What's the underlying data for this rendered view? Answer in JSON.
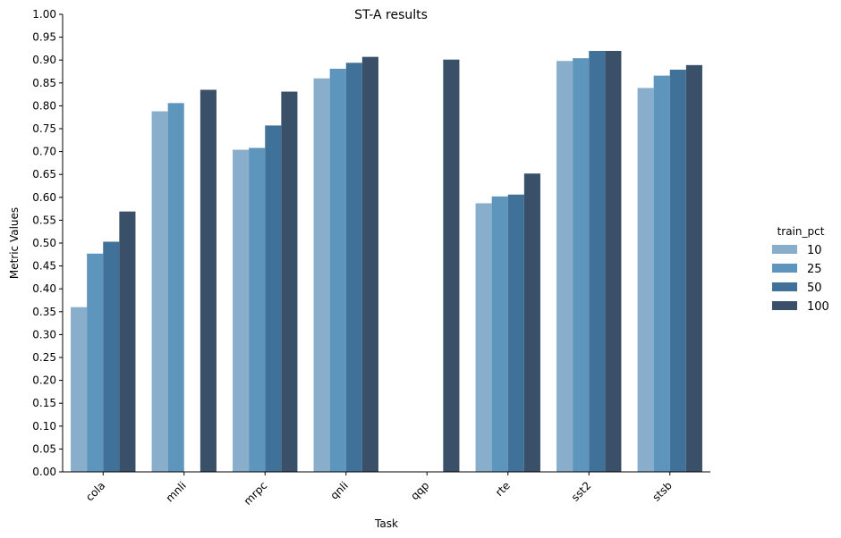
{
  "chart_data": {
    "type": "bar",
    "title": "ST-A results",
    "xlabel": "Task",
    "ylabel": "Metric Values",
    "categories": [
      "cola",
      "mnli",
      "mrpc",
      "qnli",
      "qqp",
      "rte",
      "sst2",
      "stsb"
    ],
    "ylim": [
      0,
      1.0
    ],
    "yticks": [
      "0.00",
      "0.05",
      "0.10",
      "0.15",
      "0.20",
      "0.25",
      "0.30",
      "0.35",
      "0.40",
      "0.45",
      "0.50",
      "0.55",
      "0.60",
      "0.65",
      "0.70",
      "0.75",
      "0.80",
      "0.85",
      "0.90",
      "0.95",
      "1.00"
    ],
    "grid": false,
    "legend": {
      "title": "train_pct",
      "placement": "right"
    },
    "series": [
      {
        "name": "10",
        "color": "#88aecb",
        "values": [
          0.36,
          0.788,
          0.704,
          0.86,
          null,
          0.587,
          0.898,
          0.839
        ]
      },
      {
        "name": "25",
        "color": "#5d95bd",
        "values": [
          0.477,
          0.806,
          0.708,
          0.881,
          null,
          0.602,
          0.904,
          0.866
        ]
      },
      {
        "name": "50",
        "color": "#3f7199",
        "values": [
          0.503,
          null,
          0.757,
          0.894,
          null,
          0.606,
          0.92,
          0.879
        ]
      },
      {
        "name": "100",
        "color": "#3a5068",
        "values": [
          0.569,
          0.835,
          0.831,
          0.907,
          0.901,
          0.652,
          0.92,
          0.889
        ]
      }
    ]
  }
}
